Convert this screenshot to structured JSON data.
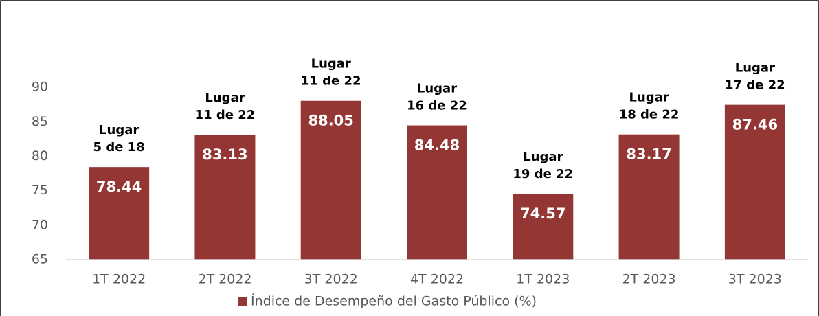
{
  "chart_data": {
    "type": "bar",
    "categories": [
      "1T 2022",
      "2T 2022",
      "3T 2022",
      "4T 2022",
      "1T 2023",
      "2T 2023",
      "3T 2023"
    ],
    "series": [
      {
        "name": "Índice de Desempeño del Gasto Público (%)",
        "color": "#943634",
        "values": [
          78.44,
          83.13,
          88.05,
          84.48,
          74.57,
          83.17,
          87.46
        ]
      }
    ],
    "annotations": [
      [
        "Lugar",
        "5 de 18"
      ],
      [
        "Lugar",
        "11 de 22"
      ],
      [
        "Lugar",
        "11 de 22"
      ],
      [
        "Lugar",
        "16 de 22"
      ],
      [
        "Lugar",
        "19 de 22"
      ],
      [
        "Lugar",
        "18 de 22"
      ],
      [
        "Lugar",
        "17 de 22"
      ]
    ],
    "ylim": [
      65,
      95
    ],
    "yticks": [
      65,
      70,
      75,
      80,
      85,
      90
    ],
    "grid": false,
    "legend": "bottom"
  }
}
